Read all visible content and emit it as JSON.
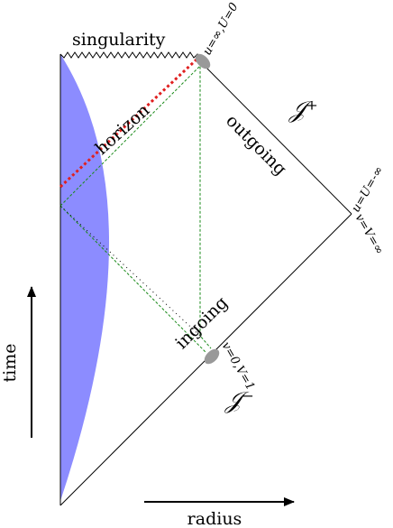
{
  "labels": {
    "singularity": "singularity",
    "horizon": "horizon",
    "outgoing": "outgoing",
    "ingoing": "ingoing",
    "time": "time",
    "radius": "radius",
    "scri_plus": "𝒥⁺",
    "scri_minus": "𝒥⁻",
    "top_corner": "u=∞,U=0",
    "right_corner_u": "u=U=-∞",
    "right_corner_v": "v=V=∞",
    "bottom_point": "v=0,V=1"
  }
}
